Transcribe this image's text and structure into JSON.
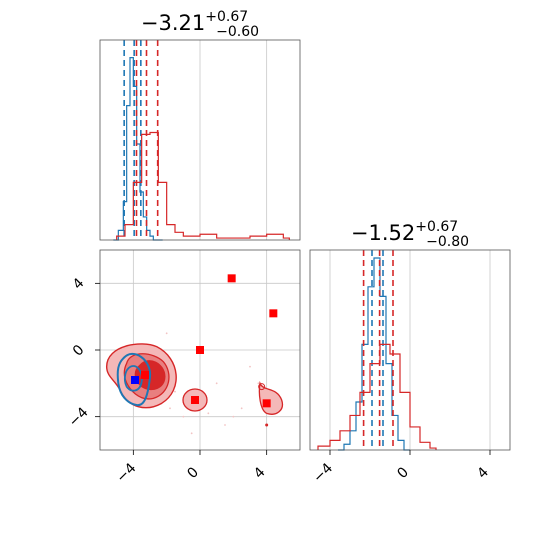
{
  "chart_data": [
    {
      "type": "histogram",
      "panel": "top-left",
      "title": {
        "value": "−3.21",
        "sup": "+0.67",
        "sub": "−0.60"
      },
      "xlim": [
        -6,
        6
      ],
      "grid": true,
      "series": [
        {
          "color": "#1f77b4",
          "bins_x": [
            -5.2,
            -4.9,
            -4.6,
            -4.4,
            -4.2,
            -4.0,
            -3.8,
            -3.6,
            -3.4,
            -3.2,
            -3.0,
            -2.8,
            -2.6
          ],
          "counts": [
            0.0,
            0.05,
            0.2,
            0.7,
            0.95,
            0.8,
            0.5,
            0.25,
            0.12,
            0.05,
            0.02,
            0.0,
            0.0
          ],
          "quantiles": [
            -4.55,
            -3.95,
            -3.55
          ]
        },
        {
          "color": "#d62728",
          "bins_x": [
            -5.0,
            -4.5,
            -4.0,
            -3.5,
            -3.0,
            -2.5,
            -2.0,
            -1.5,
            -1.0,
            0.0,
            1.0,
            2.0,
            3.0,
            4.0,
            5.0
          ],
          "counts": [
            0.02,
            0.08,
            0.3,
            0.55,
            0.56,
            0.3,
            0.08,
            0.04,
            0.02,
            0.03,
            0.01,
            0.01,
            0.02,
            0.03,
            0.01
          ],
          "quantiles": [
            -3.81,
            -3.21,
            -2.54
          ]
        }
      ]
    },
    {
      "type": "contour-scatter",
      "panel": "bottom-left",
      "xlim": [
        -6,
        6
      ],
      "ylim": [
        -6,
        6
      ],
      "xticks": [
        "−4",
        "0",
        "4"
      ],
      "yticks": [
        "4",
        "0",
        "−4"
      ],
      "grid": true,
      "markers": [
        {
          "x": 1.9,
          "y": 4.3,
          "color": "#ff0000"
        },
        {
          "x": 4.4,
          "y": 2.2,
          "color": "#ff0000"
        },
        {
          "x": 0.0,
          "y": 0.0,
          "color": "#ff0000"
        },
        {
          "x": -3.3,
          "y": -1.5,
          "color": "#ff0000"
        },
        {
          "x": -0.3,
          "y": -3.0,
          "color": "#ff0000"
        },
        {
          "x": 4.0,
          "y": -3.2,
          "color": "#ff0000"
        },
        {
          "x": -3.9,
          "y": -1.8,
          "color": "#0000ff"
        }
      ]
    },
    {
      "type": "histogram",
      "panel": "bottom-right",
      "title": {
        "value": "−1.52",
        "sup": "+0.67",
        "sub": "−0.80"
      },
      "xlim": [
        -5,
        5
      ],
      "xticks": [
        "−4",
        "0",
        "4"
      ],
      "grid": true,
      "series": [
        {
          "color": "#1f77b4",
          "bins_x": [
            -3.6,
            -3.3,
            -3.0,
            -2.7,
            -2.4,
            -2.1,
            -1.8,
            -1.5,
            -1.2,
            -0.9,
            -0.6,
            -0.3
          ],
          "counts": [
            0.0,
            0.03,
            0.1,
            0.25,
            0.55,
            0.85,
            1.0,
            0.8,
            0.45,
            0.18,
            0.05,
            0.0
          ],
          "quantiles": [
            -1.9,
            -1.35
          ]
        },
        {
          "color": "#d62728",
          "bins_x": [
            -4.6,
            -4.0,
            -3.5,
            -3.0,
            -2.5,
            -2.0,
            -1.5,
            -1.0,
            -0.5,
            0.0,
            0.5,
            1.0
          ],
          "counts": [
            0.02,
            0.05,
            0.1,
            0.18,
            0.3,
            0.45,
            0.55,
            0.5,
            0.3,
            0.12,
            0.04,
            0.01
          ],
          "quantiles": [
            -2.32,
            -1.52,
            -0.85
          ]
        }
      ]
    }
  ]
}
